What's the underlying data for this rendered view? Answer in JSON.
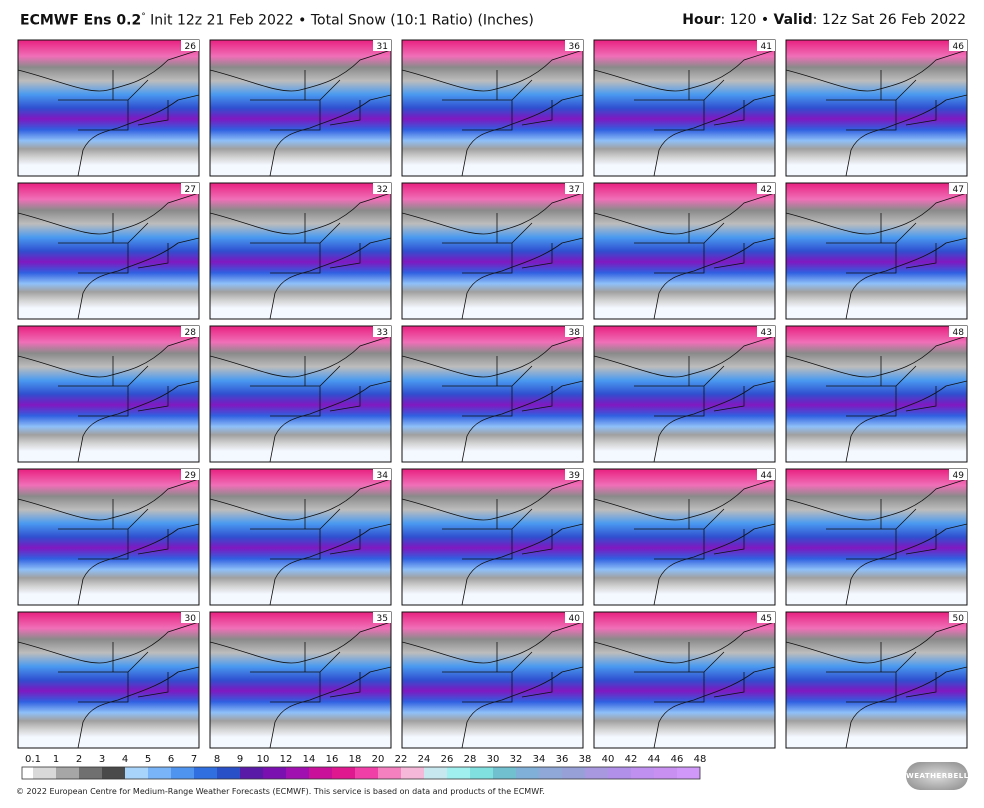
{
  "header": {
    "title": "ECMWF Ens 0.2",
    "degree": "°",
    "subtitle": "Init 12z 21 Feb 2022 • Total Snow (10:1 Ratio) (Inches)",
    "hour_label": "Hour",
    "hour_value": ": 120",
    "separator": "•",
    "valid_label": "Valid",
    "valid_value": ": 12z Sat 26 Feb 2022"
  },
  "panels": [
    26,
    31,
    36,
    41,
    46,
    27,
    32,
    37,
    42,
    47,
    28,
    33,
    38,
    43,
    48,
    29,
    34,
    39,
    44,
    49,
    30,
    35,
    40,
    45,
    50
  ],
  "colorbar": {
    "labels": [
      0.1,
      1,
      2,
      3,
      4,
      5,
      6,
      7,
      8,
      9,
      10,
      12,
      14,
      16,
      18,
      20,
      22,
      24,
      26,
      28,
      30,
      32,
      34,
      36,
      38,
      40,
      42,
      44,
      46,
      48
    ],
    "colors": [
      "#ffffff",
      "#d9d9d9",
      "#a6a6a6",
      "#707070",
      "#4a4a4a",
      "#a8d4fb",
      "#78b4f7",
      "#4f95ef",
      "#2f6fe0",
      "#2a50c8",
      "#5a1aa8",
      "#7a10b0",
      "#a010b0",
      "#c8109a",
      "#e01890",
      "#f040a8",
      "#f580c0",
      "#f5b8d8",
      "#c8e8f0",
      "#a0f0f0",
      "#80e0e0",
      "#70c0d0",
      "#80b0d8",
      "#90a8d8",
      "#98a0d8",
      "#a898e0",
      "#b090e8",
      "#c090f0",
      "#c890f0",
      "#d098f8"
    ]
  },
  "footer": "© 2022 European Centre for Medium-Range Weather Forecasts (ECMWF). This service is based on data and products of the ECMWF.",
  "logo": "WEATHERBELL"
}
